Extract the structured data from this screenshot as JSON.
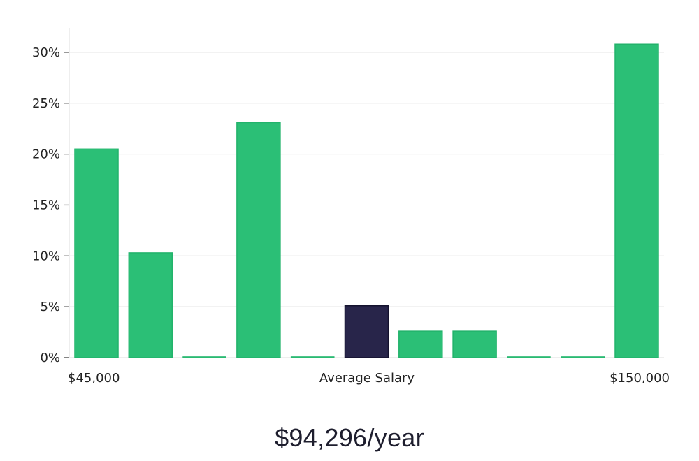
{
  "chart_data": {
    "type": "bar",
    "title": "",
    "xlabel": "Average Salary",
    "ylabel": "",
    "x_start_label": "$45,000",
    "x_end_label": "$150,000",
    "ylim": [
      0,
      32
    ],
    "yticks": [
      0,
      5,
      10,
      15,
      20,
      25,
      30
    ],
    "ytick_labels": [
      "0%",
      "5%",
      "10%",
      "15%",
      "20%",
      "25%",
      "30%"
    ],
    "values": [
      20.5,
      10.3,
      0.0,
      23.1,
      0.0,
      5.1,
      2.6,
      2.6,
      0.0,
      0.0,
      30.8
    ],
    "highlight_index": 5,
    "colors": {
      "bar": "#2bbf76",
      "bar_edge": "#22b36b",
      "highlight": "#28254a",
      "highlight_edge": "#14122e",
      "grid": "#dcdcdc",
      "axis": "#dcdcdc"
    }
  },
  "salary": {
    "value": "$94,296/year"
  }
}
